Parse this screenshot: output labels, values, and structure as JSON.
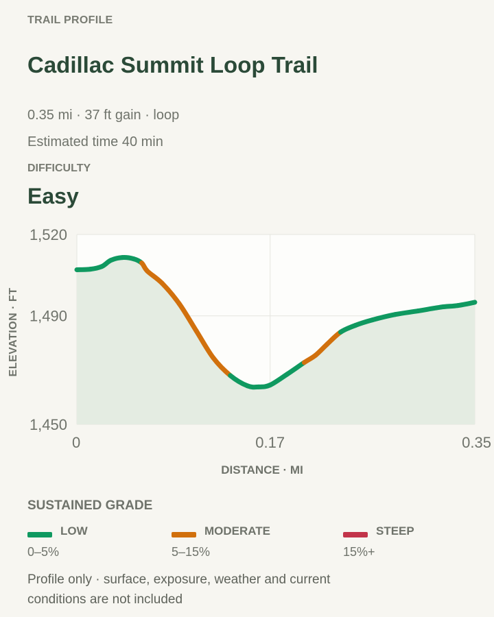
{
  "eyebrow": "TRAIL PROFILE",
  "title": "Cadillac Summit Loop Trail",
  "meta_line1": "0.35 mi · 37 ft gain · loop",
  "meta_line2": "Estimated time 40 min",
  "difficulty": {
    "label": "DIFFICULTY",
    "value": "Easy"
  },
  "legend": {
    "title": "SUSTAINED GRADE",
    "items": [
      {
        "name": "LOW",
        "range": "0–5%",
        "color": "#0f9960"
      },
      {
        "name": "MODERATE",
        "range": "5–15%",
        "color": "#d1700d"
      },
      {
        "name": "STEEP",
        "range": "15%+",
        "color": "#c2344a"
      }
    ]
  },
  "footnote": "Profile only · surface, exposure, weather and current conditions are not included",
  "colors": {
    "low": "#0f9960",
    "moderate": "#d1700d",
    "steep": "#c2344a",
    "area_fill": "#e4ece2",
    "plot_bg": "#fdfdfb"
  },
  "chart_data": {
    "type": "area",
    "xlabel": "DISTANCE · MI",
    "ylabel": "ELEVATION · FT",
    "xlim": [
      0,
      0.35
    ],
    "ylim": [
      1450,
      1520
    ],
    "x_ticks": [
      0,
      0.17,
      0.35
    ],
    "x_tick_labels": [
      "0",
      "0.17",
      "0.35"
    ],
    "y_ticks": [
      1450,
      1490,
      1520
    ],
    "y_tick_labels": [
      "1,450",
      "1,490",
      "1,520"
    ],
    "grid": true,
    "points": [
      {
        "x": 0.0,
        "y": 1507.0,
        "grade": "low"
      },
      {
        "x": 0.012,
        "y": 1507.2,
        "grade": "low"
      },
      {
        "x": 0.022,
        "y": 1508.2,
        "grade": "low"
      },
      {
        "x": 0.03,
        "y": 1510.5,
        "grade": "low"
      },
      {
        "x": 0.04,
        "y": 1511.5,
        "grade": "low"
      },
      {
        "x": 0.05,
        "y": 1511.0,
        "grade": "low"
      },
      {
        "x": 0.057,
        "y": 1509.5,
        "grade": "low"
      },
      {
        "x": 0.062,
        "y": 1506.5,
        "grade": "moderate"
      },
      {
        "x": 0.075,
        "y": 1502.0,
        "grade": "moderate"
      },
      {
        "x": 0.09,
        "y": 1494.5,
        "grade": "moderate"
      },
      {
        "x": 0.105,
        "y": 1484.5,
        "grade": "moderate"
      },
      {
        "x": 0.12,
        "y": 1474.5,
        "grade": "moderate"
      },
      {
        "x": 0.135,
        "y": 1468.0,
        "grade": "moderate"
      },
      {
        "x": 0.15,
        "y": 1464.2,
        "grade": "low"
      },
      {
        "x": 0.16,
        "y": 1463.8,
        "grade": "low"
      },
      {
        "x": 0.17,
        "y": 1464.5,
        "grade": "low"
      },
      {
        "x": 0.185,
        "y": 1468.5,
        "grade": "low"
      },
      {
        "x": 0.2,
        "y": 1472.8,
        "grade": "low"
      },
      {
        "x": 0.21,
        "y": 1475.5,
        "grade": "moderate"
      },
      {
        "x": 0.22,
        "y": 1479.5,
        "grade": "moderate"
      },
      {
        "x": 0.232,
        "y": 1484.0,
        "grade": "moderate"
      },
      {
        "x": 0.245,
        "y": 1486.5,
        "grade": "low"
      },
      {
        "x": 0.26,
        "y": 1488.5,
        "grade": "low"
      },
      {
        "x": 0.28,
        "y": 1490.5,
        "grade": "low"
      },
      {
        "x": 0.3,
        "y": 1491.8,
        "grade": "low"
      },
      {
        "x": 0.32,
        "y": 1493.2,
        "grade": "low"
      },
      {
        "x": 0.335,
        "y": 1493.8,
        "grade": "low"
      },
      {
        "x": 0.35,
        "y": 1495.0,
        "grade": "low"
      }
    ]
  }
}
